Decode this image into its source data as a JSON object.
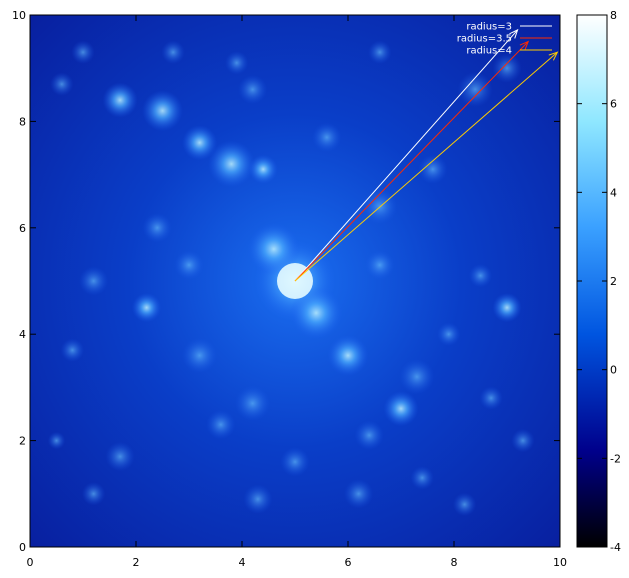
{
  "chart_data": {
    "type": "heatmap",
    "title": "",
    "xlabel": "",
    "ylabel": "",
    "xlim": [
      0,
      10
    ],
    "ylim": [
      0,
      10
    ],
    "x_ticks": [
      0,
      2,
      4,
      6,
      8,
      10
    ],
    "y_ticks": [
      0,
      2,
      4,
      6,
      8,
      10
    ],
    "colorbar": {
      "range": [
        -4,
        8
      ],
      "ticks": [
        -4,
        -2,
        0,
        2,
        4,
        6,
        8
      ],
      "colors": [
        "#000000",
        "#00008b",
        "#0055e0",
        "#3aa0ff",
        "#8fe7ff",
        "#ffffff"
      ]
    },
    "arrows": [
      {
        "label": "radius=3",
        "color": "#ffffff",
        "from": [
          5.0,
          5.0
        ],
        "to": [
          9.2,
          9.72
        ]
      },
      {
        "label": "radius=3.5",
        "color": "#ff2a00",
        "from": [
          5.0,
          5.0
        ],
        "to": [
          9.4,
          9.5
        ]
      },
      {
        "label": "radius=4",
        "color": "#ffcc00",
        "from": [
          5.0,
          5.0
        ],
        "to": [
          9.95,
          9.3
        ]
      }
    ]
  }
}
